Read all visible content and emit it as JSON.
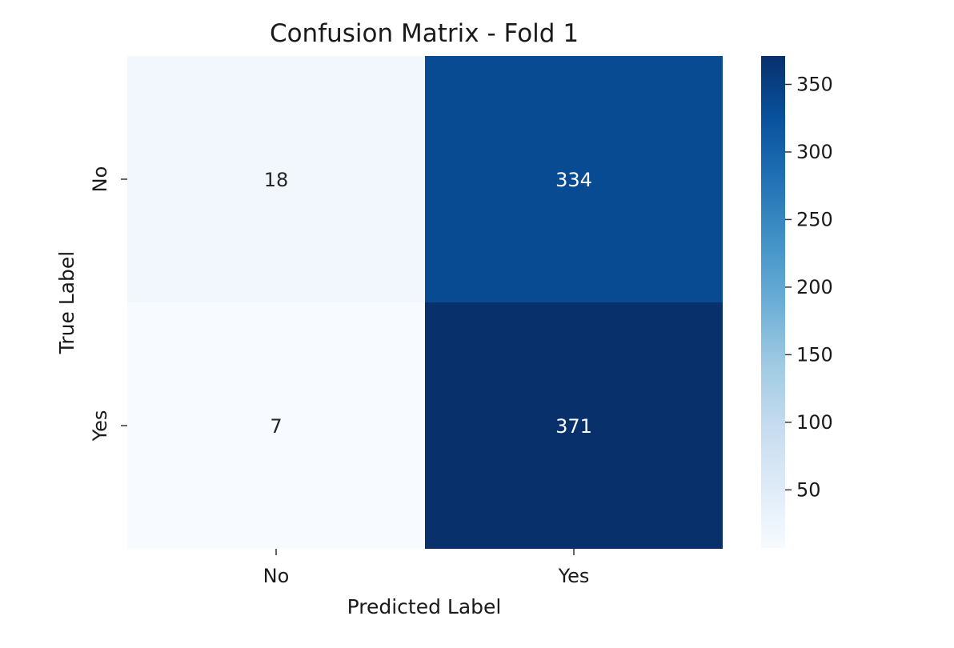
{
  "chart_data": {
    "type": "heatmap",
    "title": "Confusion Matrix - Fold 1",
    "xlabel": "Predicted Label",
    "ylabel": "True Label",
    "x_categories": [
      "No",
      "Yes"
    ],
    "y_categories": [
      "No",
      "Yes"
    ],
    "values": [
      [
        18,
        334
      ],
      [
        7,
        371
      ]
    ],
    "colormap": "Blues",
    "colorbar": {
      "ticks": [
        50,
        100,
        150,
        200,
        250,
        300,
        350
      ],
      "range": [
        7,
        371
      ]
    },
    "colors": {
      "low": "#f7fbff",
      "high": "#08306b",
      "annotation_dark": "#262626",
      "annotation_light": "#ffffff"
    }
  }
}
